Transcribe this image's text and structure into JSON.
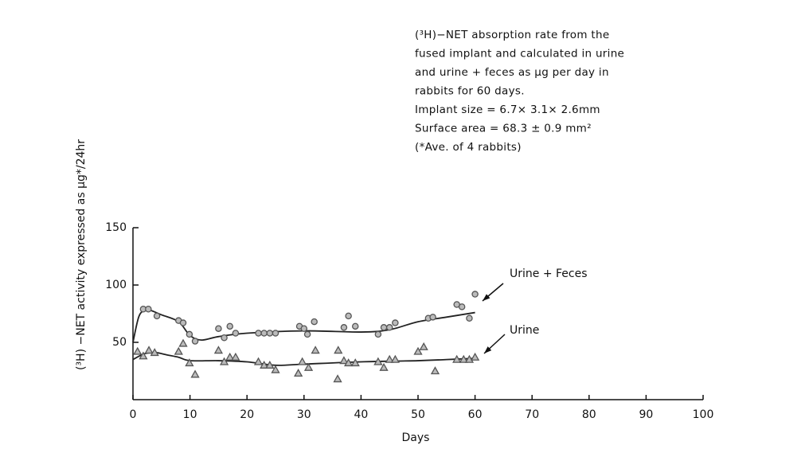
{
  "chart_data": {
    "type": "scatter",
    "annotation_lines": [
      "(³H)−NET absorption rate from the",
      "fused implant and calculated in urine",
      "and urine + feces as μg per day in",
      "rabbits for 60 days.",
      "Implant size = 6.7× 3.1× 2.6mm",
      "Surface area = 68.3 ± 0.9 mm²",
      "(*Ave. of 4 rabbits)"
    ],
    "y_label": "(³H) −NET activity expressed as μg*/24hr",
    "x_label": "Days",
    "xlim": [
      0,
      100
    ],
    "xticks": [
      0,
      10,
      20,
      30,
      40,
      50,
      60,
      70,
      80,
      90,
      100
    ],
    "ylim": [
      0,
      150
    ],
    "yticks": [
      50,
      100,
      150
    ],
    "series": [
      {
        "name": "Urine + Feces",
        "marker": "circle",
        "color": "#555555",
        "x": [
          1.8,
          2.7,
          4.2,
          8,
          8.8,
          9.9,
          10.9,
          15,
          16,
          17,
          18,
          22,
          23,
          24,
          25,
          29.2,
          30,
          30.6,
          31.8,
          37,
          37.8,
          39,
          43,
          44,
          45,
          46,
          51.8,
          52.6,
          56.8,
          57.7,
          59,
          60
        ],
        "values": [
          79,
          79,
          73,
          69,
          67,
          57,
          51,
          62,
          54,
          64,
          58,
          58,
          58,
          58,
          58,
          64,
          62,
          57,
          68,
          63,
          73,
          64,
          57,
          63,
          63,
          67,
          71,
          72,
          83,
          81,
          71,
          92
        ],
        "fit": {
          "x": [
            0,
            1,
            2,
            3,
            5,
            8,
            10,
            12,
            15,
            20,
            30,
            40,
            45,
            50,
            55,
            60
          ],
          "values": [
            50,
            72,
            78,
            78,
            74,
            68,
            56,
            52,
            55,
            58,
            60,
            59,
            61,
            68,
            72,
            76
          ]
        }
      },
      {
        "name": "Urine",
        "marker": "triangle",
        "color": "#555555",
        "x": [
          0.8,
          1.8,
          2.8,
          3.8,
          8,
          8.8,
          9.9,
          10.9,
          15,
          16,
          17,
          18,
          22,
          23,
          24,
          25,
          29,
          29.7,
          30.8,
          32,
          36,
          35.9,
          37,
          37.8,
          39,
          43,
          44,
          45,
          46,
          50,
          51,
          53,
          56.8,
          58,
          59,
          60
        ],
        "values": [
          42,
          38,
          43,
          41,
          42,
          49,
          32,
          22,
          43,
          33,
          37,
          37,
          33,
          30,
          30,
          26,
          23,
          33,
          28,
          43,
          43,
          18,
          34,
          32,
          32,
          33,
          28,
          35,
          35,
          42,
          46,
          25,
          35,
          35,
          35,
          37
        ],
        "fit": {
          "x": [
            0,
            2,
            4,
            6,
            8,
            10,
            15,
            20,
            25,
            30,
            40,
            50,
            55,
            60
          ],
          "values": [
            35,
            40,
            41,
            39,
            37,
            34,
            34,
            33,
            30,
            31,
            33,
            34,
            35,
            36
          ]
        }
      }
    ]
  }
}
